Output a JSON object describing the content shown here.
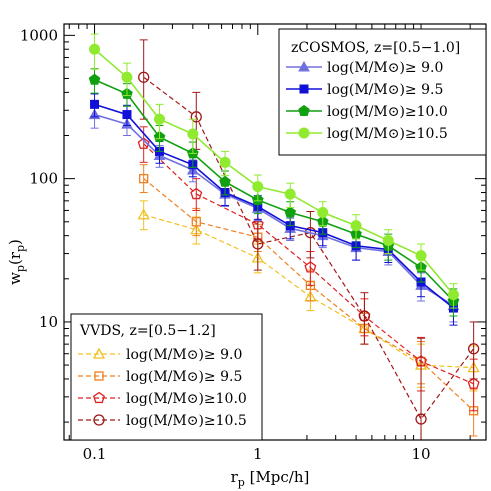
{
  "chart_data": {
    "type": "line",
    "xscale": "log",
    "yscale": "log",
    "xlim": [
      0.065,
      25
    ],
    "ylim": [
      1.5,
      1200
    ],
    "grid": false,
    "title": "",
    "xlabel": "r",
    "xlabel_sub": "p",
    "xlabel_unit": " [Mpc/h]",
    "ylabel": "w",
    "ylabel_sub": "p",
    "ylabel_paren": "(r",
    "ylabel_close": ")",
    "x_ticks": [
      {
        "value": 0.1,
        "label": "0.1"
      },
      {
        "value": 1,
        "label": "1"
      },
      {
        "value": 10,
        "label": "10"
      }
    ],
    "y_ticks": [
      {
        "value": 10,
        "label": "10"
      },
      {
        "value": 100,
        "label": "100"
      },
      {
        "value": 1000,
        "label": "1000"
      }
    ],
    "legends": [
      {
        "id": "zcosmos",
        "title": "zCOSMOS, z=[0.5−1.0]",
        "placement": "top-right",
        "entries": [
          "log(M/M⊙)≥ 9.0",
          "log(M/M⊙)≥ 9.5",
          "log(M/M⊙)≥10.0",
          "log(M/M⊙)≥10.5"
        ]
      },
      {
        "id": "vvds",
        "title": "VVDS, z=[0.5−1.2]",
        "placement": "bottom-left",
        "entries": [
          "log(M/M⊙)≥ 9.0",
          "log(M/M⊙)≥ 9.5",
          "log(M/M⊙)≥10.0",
          "log(M/M⊙)≥10.5"
        ]
      }
    ],
    "series": [
      {
        "legend": "zcosmos",
        "index": 0,
        "color": "#7070e0",
        "marker": "triangle",
        "filled": true,
        "dashed": false,
        "x": [
          0.1,
          0.158,
          0.25,
          0.4,
          0.63,
          1.0,
          1.58,
          2.5,
          4.0,
          6.3,
          10,
          15.8
        ],
        "y": [
          280,
          240,
          145,
          115,
          78,
          62,
          45,
          40,
          33,
          31,
          18,
          13
        ],
        "err": [
          [
            55,
            55
          ],
          [
            40,
            40
          ],
          [
            25,
            25
          ],
          [
            20,
            20
          ],
          [
            14,
            14
          ],
          [
            11,
            11
          ],
          [
            8,
            8
          ],
          [
            7,
            7
          ],
          [
            6,
            6
          ],
          [
            6,
            6
          ],
          [
            4,
            4
          ],
          [
            3,
            3
          ]
        ]
      },
      {
        "legend": "zcosmos",
        "index": 1,
        "color": "#1010d8",
        "marker": "square",
        "filled": true,
        "dashed": false,
        "x": [
          0.1,
          0.158,
          0.25,
          0.4,
          0.63,
          1.0,
          1.58,
          2.5,
          4.0,
          6.3,
          10,
          15.8
        ],
        "y": [
          330,
          280,
          155,
          125,
          80,
          64,
          47,
          42,
          34,
          32,
          19,
          12.5
        ],
        "err": [
          [
            60,
            60
          ],
          [
            45,
            45
          ],
          [
            27,
            27
          ],
          [
            22,
            22
          ],
          [
            15,
            15
          ],
          [
            12,
            12
          ],
          [
            9,
            9
          ],
          [
            8,
            8
          ],
          [
            7,
            7
          ],
          [
            6,
            6
          ],
          [
            4,
            4
          ],
          [
            3,
            3
          ]
        ]
      },
      {
        "legend": "zcosmos",
        "index": 2,
        "color": "#10a010",
        "marker": "pentagon",
        "filled": true,
        "dashed": false,
        "x": [
          0.1,
          0.158,
          0.25,
          0.4,
          0.63,
          1.0,
          1.58,
          2.5,
          4.0,
          6.3,
          10,
          15.8
        ],
        "y": [
          490,
          390,
          195,
          150,
          95,
          71,
          58,
          50,
          41,
          34,
          24,
          14
        ],
        "err": [
          [
            95,
            95
          ],
          [
            70,
            70
          ],
          [
            40,
            40
          ],
          [
            30,
            30
          ],
          [
            18,
            18
          ],
          [
            14,
            14
          ],
          [
            11,
            11
          ],
          [
            9,
            9
          ],
          [
            8,
            8
          ],
          [
            7,
            7
          ],
          [
            5,
            5
          ],
          [
            3,
            3
          ]
        ]
      },
      {
        "legend": "zcosmos",
        "index": 3,
        "color": "#90ea30",
        "marker": "circle",
        "filled": true,
        "dashed": false,
        "x": [
          0.1,
          0.158,
          0.25,
          0.4,
          0.63,
          1.0,
          1.58,
          2.5,
          4.0,
          6.3,
          10,
          15.8
        ],
        "y": [
          800,
          510,
          260,
          205,
          130,
          88,
          78,
          58,
          47,
          37,
          29,
          15.5
        ],
        "err": [
          [
            220,
            220
          ],
          [
            130,
            130
          ],
          [
            70,
            70
          ],
          [
            55,
            55
          ],
          [
            25,
            25
          ],
          [
            18,
            18
          ],
          [
            15,
            15
          ],
          [
            11,
            11
          ],
          [
            9,
            9
          ],
          [
            7,
            7
          ],
          [
            6,
            6
          ],
          [
            3,
            3
          ]
        ]
      },
      {
        "legend": "vvds",
        "index": 0,
        "color": "#f0c020",
        "marker": "triangle",
        "filled": false,
        "dashed": true,
        "x": [
          0.2,
          0.42,
          1.0,
          2.1,
          4.5,
          10,
          21
        ],
        "y": [
          56,
          44,
          28,
          15,
          9,
          5,
          4.8
        ],
        "err": [
          [
            12,
            14
          ],
          [
            9,
            10
          ],
          [
            6,
            7
          ],
          [
            3,
            4
          ],
          [
            2,
            2.5
          ],
          [
            1.5,
            2
          ],
          [
            1.5,
            2
          ]
        ]
      },
      {
        "legend": "vvds",
        "index": 1,
        "color": "#f08020",
        "marker": "square",
        "filled": false,
        "dashed": true,
        "x": [
          0.2,
          0.42,
          1.0,
          2.1,
          4.5,
          10,
          21
        ],
        "y": [
          100,
          50,
          39,
          18,
          9,
          5.3,
          2.4
        ],
        "err": [
          [
            20,
            25
          ],
          [
            10,
            12
          ],
          [
            8,
            9
          ],
          [
            4,
            5
          ],
          [
            2,
            2.5
          ],
          [
            1.6,
            2
          ],
          [
            0.8,
            1
          ]
        ]
      },
      {
        "legend": "vvds",
        "index": 2,
        "color": "#e02020",
        "marker": "pentagon",
        "filled": false,
        "dashed": true,
        "x": [
          0.2,
          0.42,
          1.0,
          2.1,
          4.5,
          10,
          21
        ],
        "y": [
          175,
          78,
          48,
          24,
          11,
          5.3,
          3.7
        ],
        "err": [
          [
            45,
            55
          ],
          [
            18,
            22
          ],
          [
            10,
            12
          ],
          [
            6,
            7
          ],
          [
            3,
            3.5
          ],
          [
            2,
            2.5
          ],
          [
            1.3,
            1.8
          ]
        ]
      },
      {
        "legend": "vvds",
        "index": 3,
        "color": "#a01818",
        "marker": "circle",
        "filled": false,
        "dashed": true,
        "x": [
          0.2,
          0.42,
          1.0,
          2.1,
          4.5,
          10,
          21
        ],
        "y": [
          510,
          270,
          35,
          42,
          11,
          2.1,
          6.5
        ],
        "err": [
          [
            250,
            420
          ],
          [
            110,
            130
          ],
          [
            12,
            15
          ],
          [
            14,
            17
          ],
          [
            4,
            5
          ],
          [
            0.6,
            5.6
          ],
          [
            2.5,
            3.5
          ]
        ]
      }
    ]
  }
}
